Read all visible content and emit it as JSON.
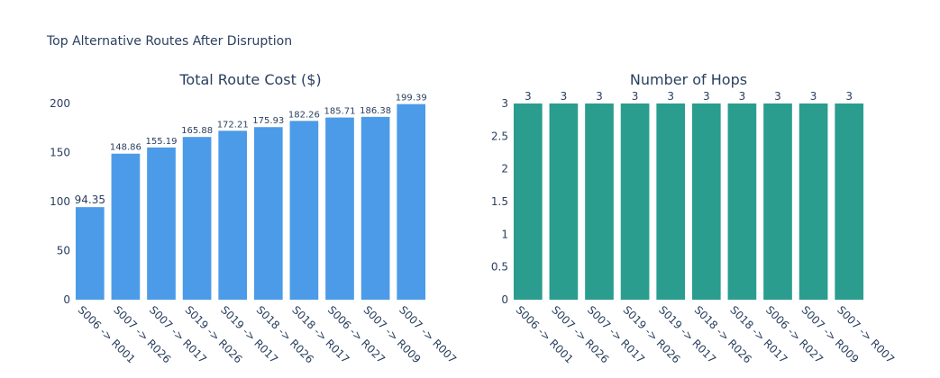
{
  "title": "Top Alternative Routes After Disruption",
  "chart_data": [
    {
      "type": "bar",
      "title": "Total Route Cost ($)",
      "categories": [
        "S006 -> R001",
        "S007 -> R026",
        "S007 -> R017",
        "S019 -> R026",
        "S019 -> R017",
        "S018 -> R026",
        "S018 -> R017",
        "S006 -> R027",
        "S007 -> R009",
        "S007 -> R007"
      ],
      "values": [
        94.35,
        148.86,
        155.19,
        165.88,
        172.21,
        175.93,
        182.26,
        185.71,
        186.38,
        199.39
      ],
      "value_labels": [
        "94.35",
        "148.86",
        "155.19",
        "165.88",
        "172.21",
        "175.93",
        "182.26",
        "185.71",
        "186.38",
        "199.39"
      ],
      "ylim": [
        0,
        200
      ],
      "yticks": [
        0,
        50,
        100,
        150,
        200
      ],
      "ytick_labels": [
        "0",
        "50",
        "100",
        "150",
        "200"
      ],
      "color": "#4c9be8",
      "grid": false
    },
    {
      "type": "bar",
      "title": "Number of Hops",
      "categories": [
        "S006 -> R001",
        "S007 -> R026",
        "S007 -> R017",
        "S019 -> R026",
        "S019 -> R017",
        "S018 -> R026",
        "S018 -> R017",
        "S006 -> R027",
        "S007 -> R009",
        "S007 -> R007"
      ],
      "values": [
        3,
        3,
        3,
        3,
        3,
        3,
        3,
        3,
        3,
        3
      ],
      "value_labels": [
        "3",
        "3",
        "3",
        "3",
        "3",
        "3",
        "3",
        "3",
        "3",
        "3"
      ],
      "ylim": [
        0,
        3
      ],
      "yticks": [
        0,
        0.5,
        1,
        1.5,
        2,
        2.5,
        3
      ],
      "ytick_labels": [
        "0",
        "0.5",
        "1",
        "1.5",
        "2",
        "2.5",
        "3"
      ],
      "color": "#2a9d8f",
      "grid": false
    }
  ]
}
